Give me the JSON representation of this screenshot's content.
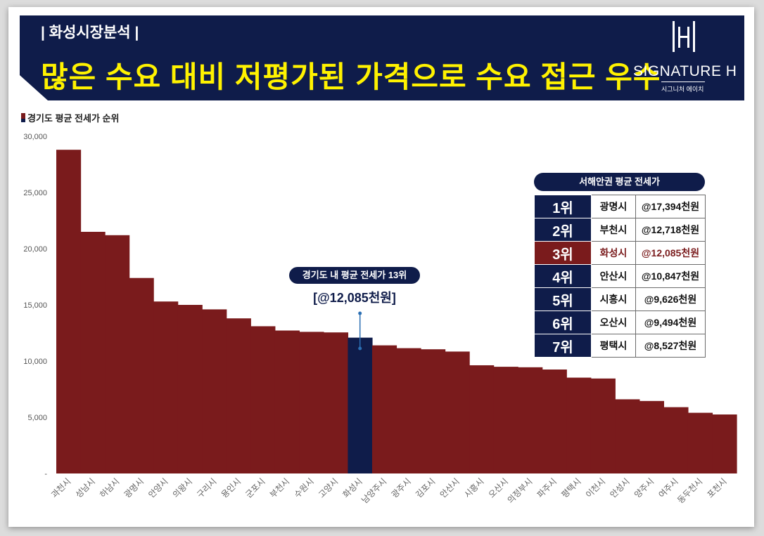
{
  "header": {
    "tag": "| 화성시장분석 |",
    "headline": "많은 수요 대비 저평가된 가격으로 수요 접근 우수",
    "logo_name": "SIGNATURE H",
    "logo_sub": "시그니처 에이치"
  },
  "legend_label": "경기도 평균 전세가 순위",
  "colors": {
    "bar": "#7a1b1c",
    "highlight": "#0f1c4a",
    "banner": "#0f1c4a",
    "headline": "#fff200"
  },
  "chart_data": {
    "type": "bar",
    "title": "",
    "xlabel": "",
    "ylabel": "",
    "ylim": [
      0,
      30000
    ],
    "yticks": [
      "-",
      "5,000",
      "10,000",
      "15,000",
      "20,000",
      "25,000",
      "30,000"
    ],
    "categories": [
      "과천시",
      "성남시",
      "하남시",
      "광명시",
      "안양시",
      "의왕시",
      "구리시",
      "용인시",
      "군포시",
      "부천시",
      "수원시",
      "고양시",
      "화성시",
      "남양주시",
      "광주시",
      "김포시",
      "안산시",
      "시흥시",
      "오산시",
      "의정부시",
      "파주시",
      "평택시",
      "이천시",
      "안성시",
      "양주시",
      "여주시",
      "동두천시",
      "포천시"
    ],
    "values": [
      28800,
      21500,
      21200,
      17394,
      15300,
      15000,
      14600,
      13800,
      13100,
      12718,
      12600,
      12550,
      12085,
      11400,
      11150,
      11050,
      10847,
      9626,
      9494,
      9450,
      9250,
      8527,
      8450,
      6600,
      6450,
      5900,
      5400,
      5250
    ],
    "highlight_category": "화성시",
    "annotation": {
      "label": "경기도 내 평균 전세가 13위",
      "value": "[@12,085천원]"
    }
  },
  "table": {
    "title": "서해안권 평균 전세가",
    "rows": [
      {
        "rank": "1위",
        "city": "광명시",
        "value": "@17,394천원",
        "highlight": false
      },
      {
        "rank": "2위",
        "city": "부천시",
        "value": "@12,718천원",
        "highlight": false
      },
      {
        "rank": "3위",
        "city": "화성시",
        "value": "@12,085천원",
        "highlight": true
      },
      {
        "rank": "4위",
        "city": "안산시",
        "value": "@10,847천원",
        "highlight": false
      },
      {
        "rank": "5위",
        "city": "시흥시",
        "value": "@9,626천원",
        "highlight": false
      },
      {
        "rank": "6위",
        "city": "오산시",
        "value": "@9,494천원",
        "highlight": false
      },
      {
        "rank": "7위",
        "city": "평택시",
        "value": "@8,527천원",
        "highlight": false
      }
    ]
  }
}
